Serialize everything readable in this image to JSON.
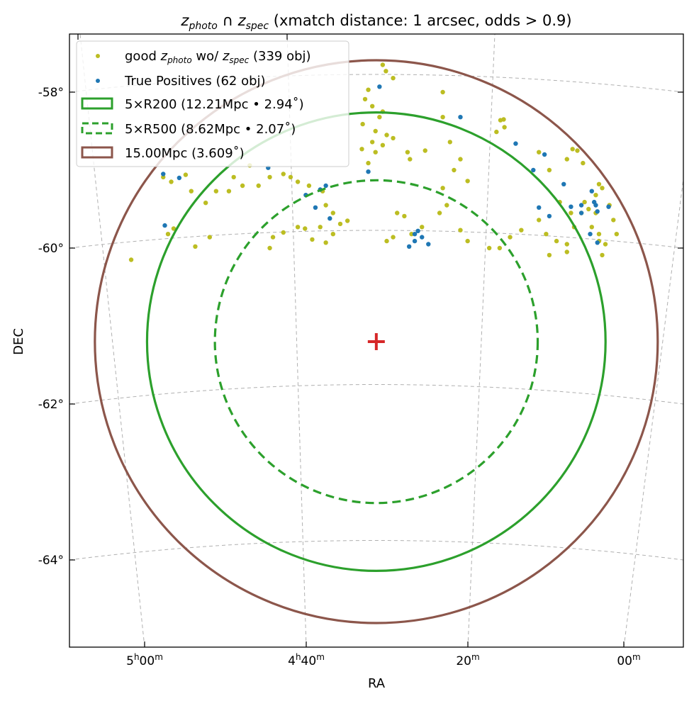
{
  "chart_data": {
    "type": "scatter",
    "title": {
      "z1": "z",
      "s1": "photo",
      "cap": " ∩ ",
      "z2": "z",
      "s2": "spec",
      "rest": " (xmatch distance: 1 arcsec, odds > 0.9)"
    },
    "xlabel": "RA",
    "ylabel": "DEC",
    "x_units": "minutes of RA after 4h00m",
    "y_units": "degrees",
    "x_ticks": [
      {
        "h": "5",
        "hu": "h",
        "m": "00",
        "mu": "m"
      },
      {
        "h": "4",
        "hu": "h",
        "m": "40",
        "mu": "m"
      },
      {
        "m": "20",
        "mu": "m"
      },
      {
        "m": "00",
        "mu": "m"
      }
    ],
    "y_ticks": [
      "-58°",
      "-60°",
      "-62°",
      "-64°"
    ],
    "grid": true,
    "legend_placement": "top-left",
    "center": {
      "ra_min": 30.9,
      "dec": -61.2,
      "marker": "+",
      "color": "#d62728"
    },
    "circles": [
      {
        "name": "5xR200",
        "radius_deg": 2.94,
        "style": "solid",
        "color": "#2ca02c"
      },
      {
        "name": "5xR500",
        "radius_deg": 2.07,
        "style": "dashed",
        "color": "#2ca02c"
      },
      {
        "name": "15Mpc",
        "radius_deg": 3.609,
        "style": "solid",
        "color": "#8c564b"
      }
    ],
    "legend": {
      "good": {
        "pre": "good ",
        "z1": "z",
        "s1": "photo",
        "mid": " wo/ ",
        "z2": "z",
        "s2": "spec",
        "post": " (339 obj)"
      },
      "tp": "True Positives (62 obj)",
      "r200": "5×R200 (12.21Mpc • 2.94˚)",
      "r500": "5×R500 (8.62Mpc • 2.07˚)",
      "r15": "15.00Mpc (3.609˚)"
    },
    "series": [
      {
        "name": "good zphoto wo/ zspec",
        "count": 339,
        "color": "#bcbd22",
        "points": [
          [
            61.5,
            -60.15
          ],
          [
            57.5,
            -59.09
          ],
          [
            56.5,
            -59.15
          ],
          [
            54.7,
            -59.06
          ],
          [
            54.0,
            -59.27
          ],
          [
            56.2,
            -59.75
          ],
          [
            56.9,
            -59.82
          ],
          [
            53.5,
            -59.98
          ],
          [
            51.7,
            -59.86
          ],
          [
            52.2,
            -59.42
          ],
          [
            50.9,
            -59.27
          ],
          [
            49.3,
            -59.27
          ],
          [
            48.7,
            -59.09
          ],
          [
            47.6,
            -59.2
          ],
          [
            46.7,
            -58.94
          ],
          [
            45.6,
            -59.2
          ],
          [
            44.2,
            -59.09
          ],
          [
            42.5,
            -59.05
          ],
          [
            41.6,
            -59.09
          ],
          [
            40.7,
            -59.15
          ],
          [
            39.3,
            -59.2
          ],
          [
            37.6,
            -59.27
          ],
          [
            37.2,
            -59.45
          ],
          [
            36.3,
            -59.55
          ],
          [
            37.9,
            -59.73
          ],
          [
            38.9,
            -59.89
          ],
          [
            37.2,
            -59.93
          ],
          [
            36.3,
            -59.82
          ],
          [
            35.4,
            -59.69
          ],
          [
            34.5,
            -59.65
          ],
          [
            43.8,
            -59.86
          ],
          [
            44.2,
            -60.0
          ],
          [
            42.5,
            -59.8
          ],
          [
            40.7,
            -59.73
          ],
          [
            39.8,
            -59.75
          ],
          [
            30.1,
            -57.65
          ],
          [
            29.7,
            -57.73
          ],
          [
            31.9,
            -57.97
          ],
          [
            32.3,
            -58.09
          ],
          [
            31.4,
            -58.18
          ],
          [
            30.1,
            -58.25
          ],
          [
            30.5,
            -58.32
          ],
          [
            32.6,
            -58.41
          ],
          [
            31.0,
            -58.5
          ],
          [
            31.4,
            -58.64
          ],
          [
            32.7,
            -58.73
          ],
          [
            31.0,
            -58.77
          ],
          [
            30.1,
            -58.68
          ],
          [
            31.9,
            -58.91
          ],
          [
            28.8,
            -57.82
          ],
          [
            28.8,
            -58.59
          ],
          [
            29.6,
            -58.55
          ],
          [
            27.0,
            -58.77
          ],
          [
            26.7,
            -58.86
          ],
          [
            24.8,
            -58.75
          ],
          [
            22.6,
            -58.0
          ],
          [
            22.6,
            -58.32
          ],
          [
            21.7,
            -58.64
          ],
          [
            20.4,
            -58.86
          ],
          [
            19.5,
            -59.14
          ],
          [
            21.2,
            -59.0
          ],
          [
            22.6,
            -59.23
          ],
          [
            22.1,
            -59.45
          ],
          [
            28.3,
            -59.55
          ],
          [
            27.4,
            -59.59
          ],
          [
            29.6,
            -59.91
          ],
          [
            28.8,
            -59.86
          ],
          [
            26.5,
            -59.82
          ],
          [
            25.2,
            -59.73
          ],
          [
            23.0,
            -59.55
          ],
          [
            20.4,
            -59.77
          ],
          [
            19.5,
            -59.91
          ],
          [
            16.8,
            -60.0
          ],
          [
            14.2,
            -59.86
          ],
          [
            12.8,
            -59.77
          ],
          [
            15.5,
            -60.0
          ],
          [
            15.9,
            -58.51
          ],
          [
            15.4,
            -58.36
          ],
          [
            15.0,
            -58.35
          ],
          [
            14.9,
            -58.45
          ],
          [
            10.6,
            -58.77
          ],
          [
            9.3,
            -59.0
          ],
          [
            7.1,
            -58.86
          ],
          [
            6.4,
            -58.73
          ],
          [
            5.8,
            -58.75
          ],
          [
            5.1,
            -58.91
          ],
          [
            3.1,
            -59.18
          ],
          [
            2.7,
            -59.23
          ],
          [
            3.5,
            -59.32
          ],
          [
            4.9,
            -59.41
          ],
          [
            4.4,
            -59.5
          ],
          [
            1.8,
            -59.45
          ],
          [
            1.3,
            -59.64
          ],
          [
            3.1,
            -59.82
          ],
          [
            4.0,
            -59.73
          ],
          [
            6.2,
            -59.73
          ],
          [
            7.1,
            -59.95
          ],
          [
            8.4,
            -59.91
          ],
          [
            9.3,
            -60.09
          ],
          [
            7.1,
            -60.05
          ],
          [
            3.1,
            -59.91
          ],
          [
            2.7,
            -60.09
          ],
          [
            2.3,
            -59.95
          ],
          [
            0.9,
            -59.82
          ],
          [
            5.3,
            -59.55
          ],
          [
            9.7,
            -59.82
          ],
          [
            10.6,
            -59.64
          ],
          [
            8.0,
            -59.41
          ],
          [
            6.6,
            -59.55
          ],
          [
            3.5,
            -59.55
          ]
        ]
      },
      {
        "name": "True Positives",
        "count": 62,
        "color": "#1f77b4",
        "points": [
          [
            30.5,
            -57.93
          ],
          [
            20.4,
            -58.32
          ],
          [
            13.5,
            -58.66
          ],
          [
            11.3,
            -59.0
          ],
          [
            9.9,
            -58.8
          ],
          [
            7.5,
            -59.18
          ],
          [
            5.3,
            -59.45
          ],
          [
            4.0,
            -59.27
          ],
          [
            3.7,
            -59.41
          ],
          [
            3.5,
            -59.45
          ],
          [
            5.3,
            -59.55
          ],
          [
            6.6,
            -59.47
          ],
          [
            1.9,
            -59.47
          ],
          [
            3.3,
            -59.53
          ],
          [
            4.2,
            -59.82
          ],
          [
            3.3,
            -59.93
          ],
          [
            10.6,
            -59.48
          ],
          [
            9.3,
            -59.59
          ],
          [
            25.7,
            -59.78
          ],
          [
            26.1,
            -59.82
          ],
          [
            25.2,
            -59.86
          ],
          [
            26.1,
            -59.91
          ],
          [
            24.4,
            -59.95
          ],
          [
            26.8,
            -59.98
          ],
          [
            31.9,
            -59.02
          ],
          [
            57.5,
            -59.05
          ],
          [
            55.5,
            -59.1
          ],
          [
            57.3,
            -59.71
          ],
          [
            39.7,
            -59.32
          ],
          [
            37.9,
            -59.25
          ],
          [
            37.2,
            -59.2
          ],
          [
            38.5,
            -59.48
          ],
          [
            36.7,
            -59.62
          ],
          [
            44.4,
            -58.97
          ]
        ]
      }
    ]
  }
}
